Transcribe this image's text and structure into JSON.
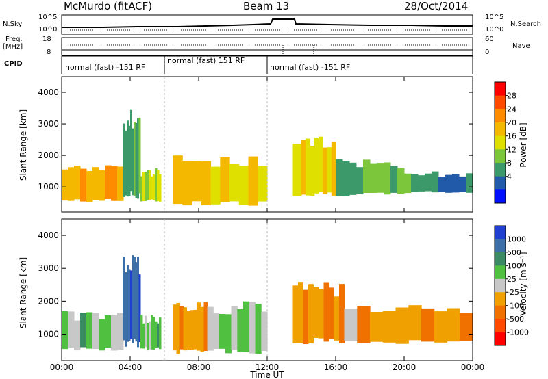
{
  "header": {
    "radar": "McMurdo (fitACF)",
    "beam": "Beam 13",
    "date": "28/Oct/2014"
  },
  "nsky_panel": {
    "left_label": "N.Sky",
    "right_label": "N.Search",
    "left_ticks": [
      "10^5",
      "10^0"
    ],
    "right_ticks": [
      "10^5",
      "10^0"
    ]
  },
  "freq_panel": {
    "left_label_line1": "Freq.",
    "left_label_line2": "[MHz]",
    "right_label": "Nave",
    "left_ticks": [
      "18",
      "8"
    ],
    "right_ticks": [
      "60",
      "0"
    ]
  },
  "cpid_panel": {
    "label": "CPID",
    "segments": [
      {
        "label": "normal (fast) -151 RF",
        "start_hour": 0,
        "end_hour": 6
      },
      {
        "label": "normal (fast) 151 RF",
        "start_hour": 6,
        "end_hour": 12
      },
      {
        "label": "normal (fast) -151 RF",
        "start_hour": 12,
        "end_hour": 24
      }
    ]
  },
  "power_colorbar": {
    "title": "Power [dB]",
    "ticks": [
      "28",
      "24",
      "20",
      "16",
      "12",
      "8",
      "4"
    ],
    "colors": [
      "#ff0000",
      "#ff4a00",
      "#ff8c00",
      "#f5b800",
      "#e0e000",
      "#7cc63c",
      "#3c9a6a",
      "#205aa8",
      "#0010ff"
    ]
  },
  "velocity_colorbar": {
    "title": "Velocity [m s⁻¹]",
    "ticks": [
      "1000",
      "500",
      "100",
      "25",
      "-25",
      "-100",
      "-500",
      "-1000"
    ],
    "colors": [
      "#2040d0",
      "#3c6ea8",
      "#3a8a64",
      "#50c040",
      "#c8c8c8",
      "#f0a000",
      "#f07000",
      "#ff4a00",
      "#ff0000"
    ]
  },
  "chart_data": [
    {
      "type": "heatmap",
      "name": "Power",
      "ylabel": "Slant Range [km]",
      "xlim": [
        0,
        24
      ],
      "ylim": [
        200,
        4500
      ],
      "yticks": [
        "1000",
        "2000",
        "3000",
        "4000"
      ],
      "xticks": [
        "00:00",
        "04:00",
        "08:00",
        "12:00",
        "16:00",
        "20:00",
        "00:00"
      ],
      "units": "dB",
      "bands": [
        {
          "t0": 0.0,
          "t1": 3.6,
          "r0": 500,
          "r1": 1700,
          "value": 20
        },
        {
          "t0": 3.6,
          "t1": 4.6,
          "r0": 600,
          "r1": 3500,
          "value": 10
        },
        {
          "t0": 4.6,
          "t1": 5.8,
          "r0": 500,
          "r1": 1600,
          "value": 14
        },
        {
          "t0": 6.5,
          "t1": 12.0,
          "r0": 400,
          "r1": 2000,
          "value": 18
        },
        {
          "t0": 13.5,
          "t1": 16.0,
          "r0": 700,
          "r1": 2600,
          "value": 18
        },
        {
          "t0": 16.0,
          "t1": 20.0,
          "r0": 700,
          "r1": 1900,
          "value": 10
        },
        {
          "t0": 20.0,
          "t1": 24.0,
          "r0": 800,
          "r1": 1500,
          "value": 8
        }
      ]
    },
    {
      "type": "heatmap",
      "name": "Velocity",
      "ylabel": "Slant Range [km]",
      "xlabel": "Time UT",
      "xlim": [
        0,
        24
      ],
      "ylim": [
        200,
        4500
      ],
      "yticks": [
        "1000",
        "2000",
        "3000",
        "4000"
      ],
      "xticks": [
        "00:00",
        "04:00",
        "08:00",
        "12:00",
        "16:00",
        "20:00",
        "00:00"
      ],
      "units": "m s-1",
      "bands": [
        {
          "t0": 0.0,
          "t1": 3.6,
          "r0": 500,
          "r1": 1700,
          "value": 200
        },
        {
          "t0": 3.6,
          "t1": 4.6,
          "r0": 600,
          "r1": 3500,
          "value": 800
        },
        {
          "t0": 4.6,
          "t1": 5.8,
          "r0": 500,
          "r1": 1600,
          "value": 200
        },
        {
          "t0": 6.5,
          "t1": 8.5,
          "r0": 400,
          "r1": 2000,
          "value": -300
        },
        {
          "t0": 8.5,
          "t1": 12.0,
          "r0": 400,
          "r1": 2000,
          "value": 200
        },
        {
          "t0": 13.5,
          "t1": 16.5,
          "r0": 700,
          "r1": 2600,
          "value": -300
        },
        {
          "t0": 16.5,
          "t1": 24.0,
          "r0": 700,
          "r1": 1900,
          "value": -300
        }
      ]
    }
  ]
}
